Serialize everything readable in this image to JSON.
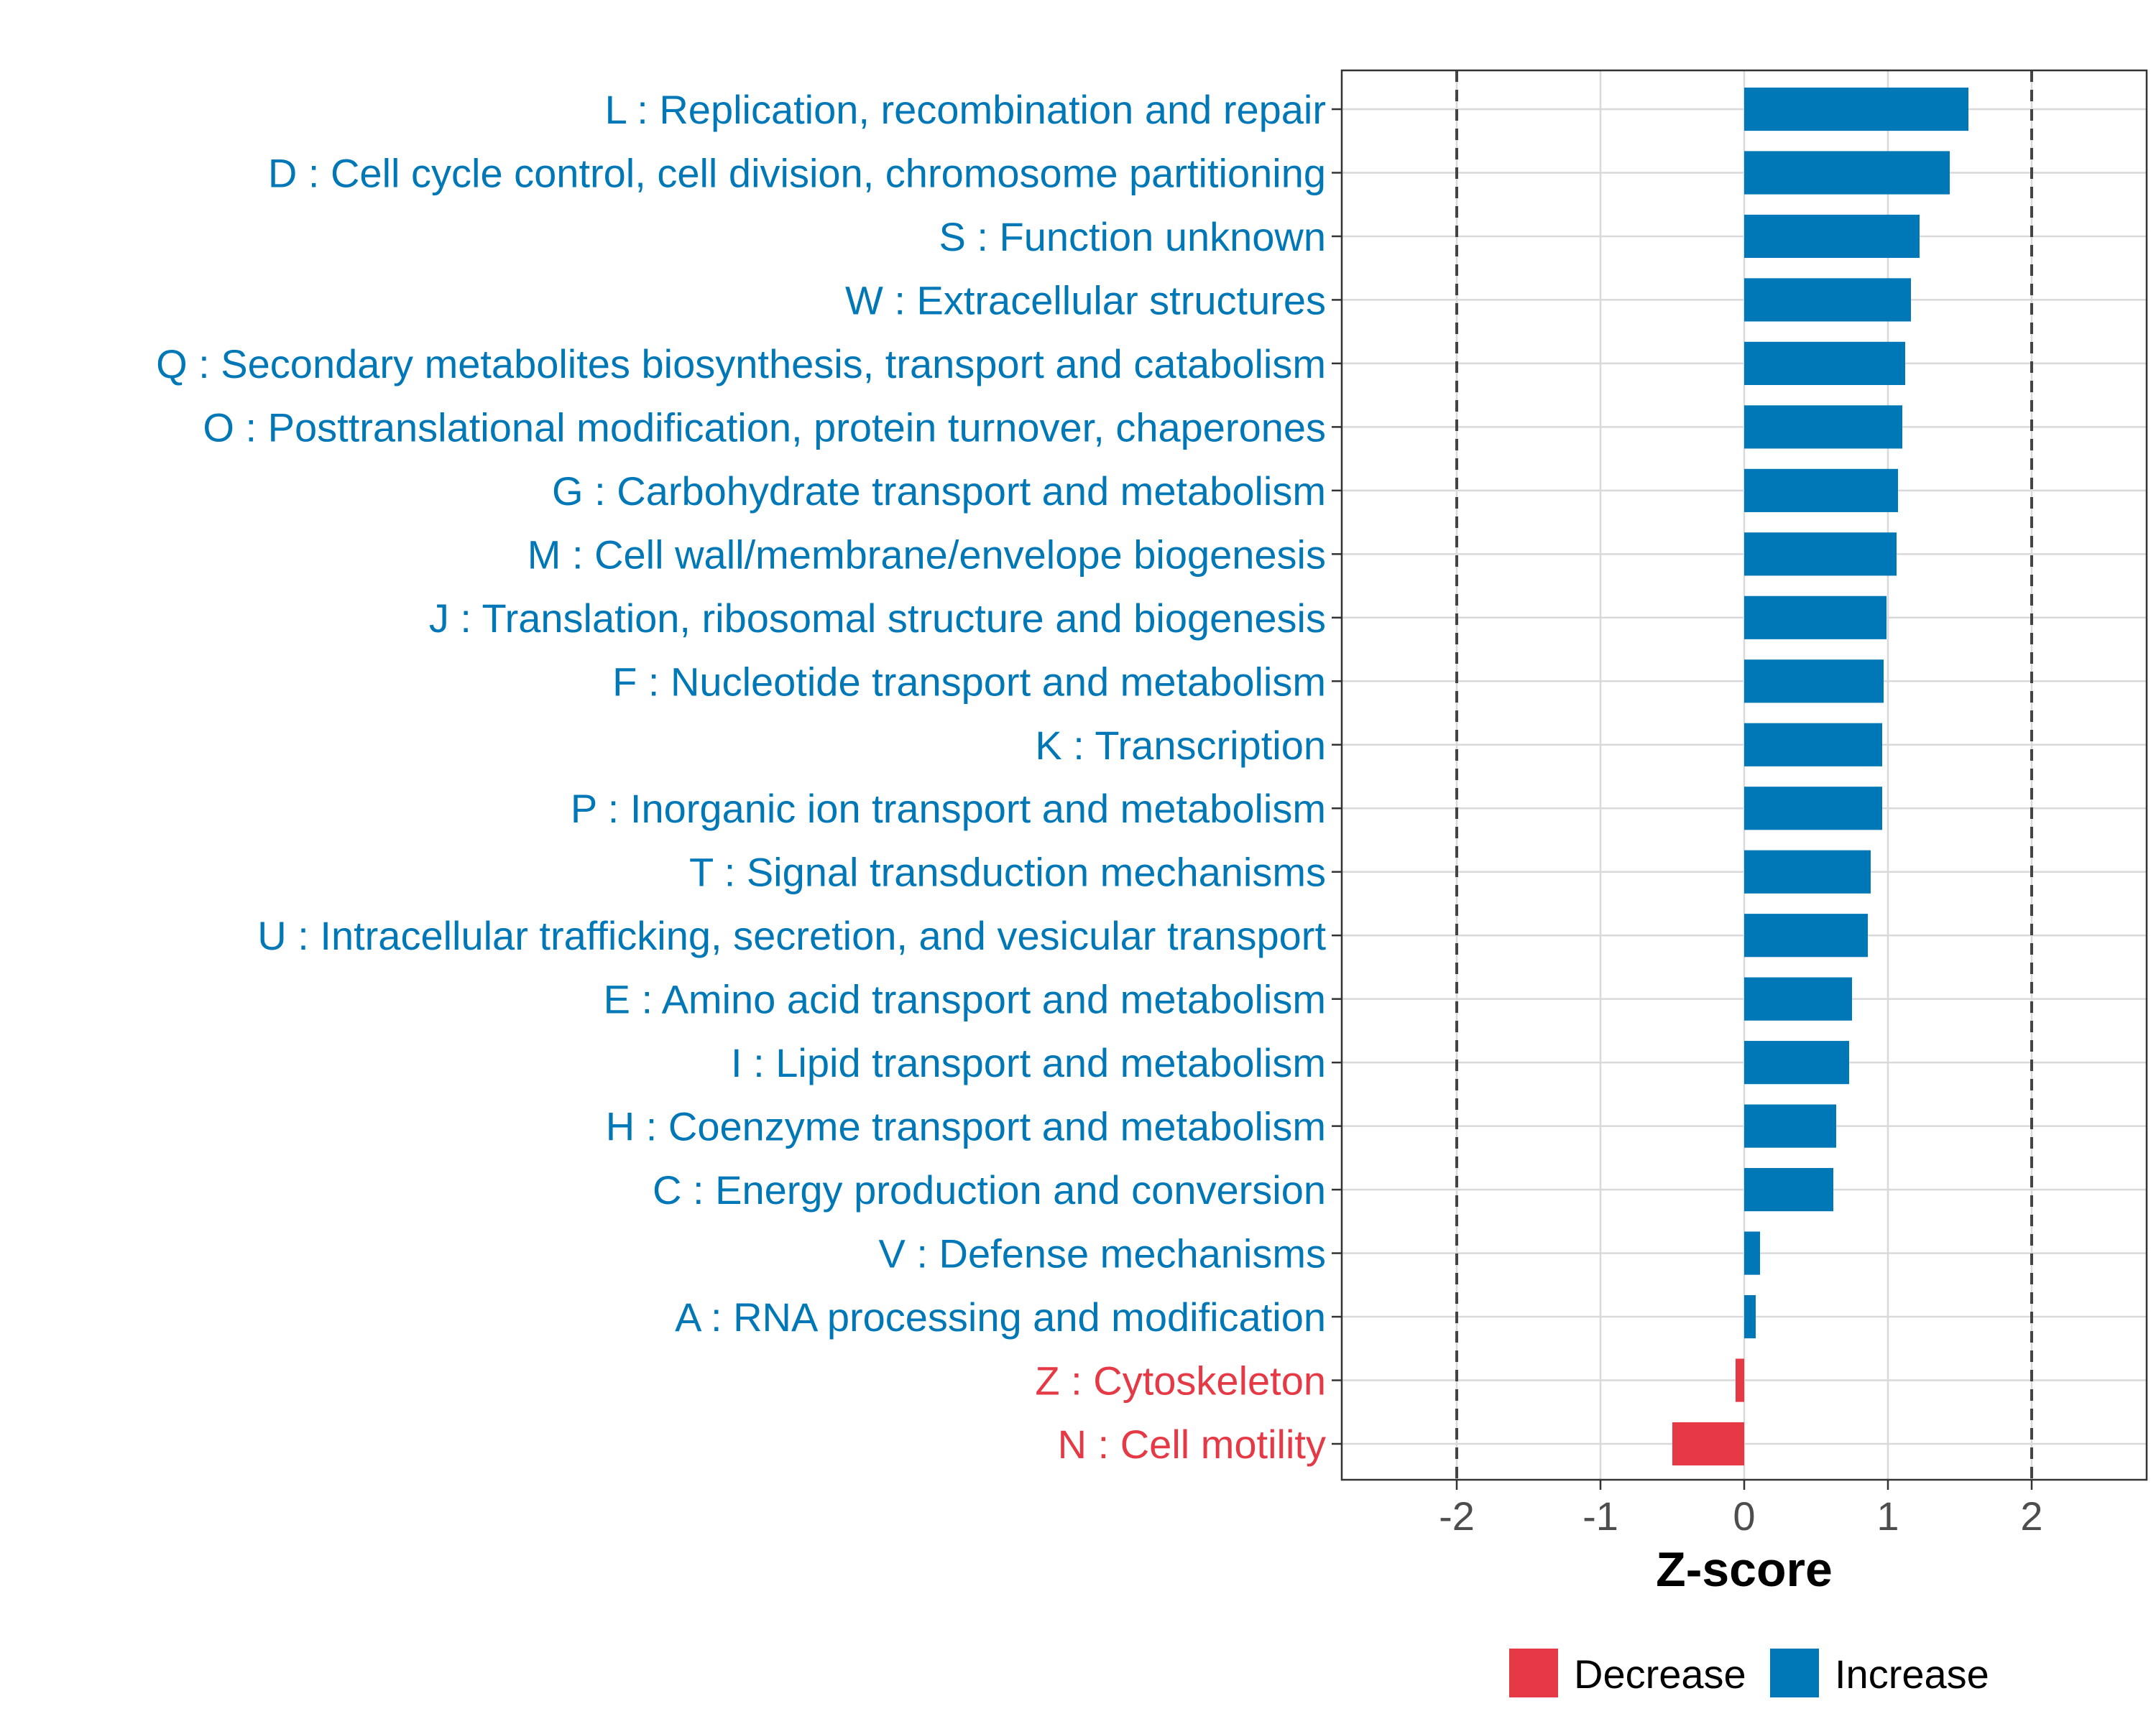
{
  "chart_data": {
    "type": "bar",
    "orientation": "horizontal",
    "xlabel": "Z-score",
    "ylabel": "",
    "xlim": [
      -2.8,
      2.8
    ],
    "x_ticks": [
      "-2",
      "-1",
      "0",
      "1",
      "2"
    ],
    "x_tick_values": [
      -2,
      -1,
      0,
      1,
      2
    ],
    "reference_lines": [
      -2,
      2
    ],
    "grid": true,
    "colors": {
      "Decrease": "#E63946",
      "Increase": "#0077B6"
    },
    "legend": {
      "position": "bottom",
      "entries": [
        "Decrease",
        "Increase"
      ]
    },
    "categories": [
      "L : Replication, recombination and repair",
      "D : Cell cycle control, cell division, chromosome partitioning",
      "S : Function unknown",
      "W : Extracellular structures",
      "Q : Secondary metabolites biosynthesis, transport and catabolism",
      "O : Posttranslational modification, protein turnover, chaperones",
      "G : Carbohydrate transport and metabolism",
      "M : Cell wall/membrane/envelope biogenesis",
      "J : Translation, ribosomal structure and biogenesis",
      "F : Nucleotide transport and metabolism",
      "K : Transcription",
      "P : Inorganic ion transport and metabolism",
      "T : Signal transduction mechanisms",
      "U : Intracellular trafficking, secretion, and vesicular transport",
      "E : Amino acid transport and metabolism",
      "I : Lipid transport and metabolism",
      "H : Coenzyme transport and metabolism",
      "C : Energy production and conversion",
      "V : Defense mechanisms",
      "A : RNA processing and modification",
      "Z : Cytoskeleton",
      "N : Cell motility"
    ],
    "values": [
      1.56,
      1.43,
      1.22,
      1.16,
      1.12,
      1.1,
      1.07,
      1.06,
      0.99,
      0.97,
      0.96,
      0.96,
      0.88,
      0.86,
      0.75,
      0.73,
      0.64,
      0.62,
      0.11,
      0.08,
      -0.06,
      -0.5
    ],
    "direction": [
      "Increase",
      "Increase",
      "Increase",
      "Increase",
      "Increase",
      "Increase",
      "Increase",
      "Increase",
      "Increase",
      "Increase",
      "Increase",
      "Increase",
      "Increase",
      "Increase",
      "Increase",
      "Increase",
      "Increase",
      "Increase",
      "Increase",
      "Increase",
      "Decrease",
      "Decrease"
    ]
  }
}
